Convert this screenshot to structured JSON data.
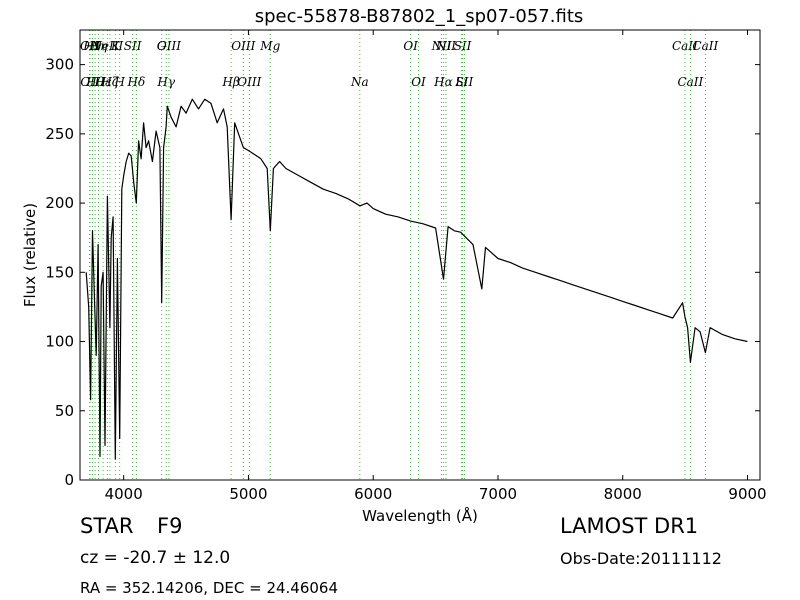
{
  "chart_data": {
    "type": "line",
    "title": "spec-55878-B87802_1_sp07-057.fits",
    "xlabel": "Wavelength (Å)",
    "ylabel": "Flux (relative)",
    "xlim": [
      3650,
      9100
    ],
    "ylim": [
      0,
      325
    ],
    "x_ticks": [
      4000,
      5000,
      6000,
      7000,
      8000,
      9000
    ],
    "y_ticks": [
      0,
      50,
      100,
      150,
      200,
      250,
      300
    ],
    "grid": false,
    "line_color": "#000000",
    "marker_color": "#4daf4a",
    "series": [
      {
        "x": [
          3700,
          3720,
          3735,
          3750,
          3765,
          3780,
          3795,
          3810,
          3820,
          3835,
          3850,
          3870,
          3890,
          3900,
          3915,
          3933,
          3950,
          3968,
          3985,
          4000,
          4020,
          4040,
          4060,
          4080,
          4101,
          4120,
          4140,
          4160,
          4180,
          4200,
          4230,
          4260,
          4290,
          4305,
          4320,
          4340,
          4350,
          4380,
          4420,
          4460,
          4500,
          4550,
          4600,
          4650,
          4700,
          4750,
          4800,
          4830,
          4861,
          4890,
          4920,
          4960,
          5000,
          5050,
          5100,
          5150,
          5175,
          5200,
          5250,
          5300,
          5400,
          5500,
          5600,
          5700,
          5800,
          5893,
          5950,
          6000,
          6100,
          6200,
          6300,
          6400,
          6500,
          6563,
          6600,
          6650,
          6700,
          6800,
          6870,
          6900,
          7000,
          7100,
          7200,
          7300,
          7400,
          7500,
          7600,
          7700,
          7800,
          7900,
          8000,
          8100,
          8200,
          8300,
          8400,
          8480,
          8498,
          8520,
          8542,
          8580,
          8620,
          8662,
          8700,
          8800,
          8900,
          9000
        ],
        "y": [
          150,
          125,
          58,
          180,
          135,
          90,
          170,
          17,
          140,
          150,
          25,
          205,
          110,
          175,
          190,
          15,
          160,
          30,
          210,
          220,
          230,
          236,
          234,
          215,
          200,
          245,
          232,
          258,
          240,
          245,
          230,
          252,
          240,
          128,
          240,
          255,
          270,
          262,
          255,
          270,
          265,
          275,
          268,
          275,
          272,
          258,
          268,
          255,
          188,
          258,
          250,
          240,
          238,
          235,
          232,
          225,
          180,
          225,
          230,
          225,
          220,
          215,
          210,
          207,
          203,
          198,
          200,
          196,
          192,
          190,
          187,
          185,
          182,
          145,
          183,
          180,
          179,
          170,
          138,
          168,
          160,
          157,
          153,
          150,
          147,
          144,
          141,
          138,
          135,
          132,
          129,
          126,
          123,
          120,
          117,
          128,
          118,
          110,
          85,
          110,
          107,
          92,
          110,
          105,
          102,
          100
        ]
      }
    ],
    "line_markers": [
      {
        "x": 3727,
        "label": "OII"
      },
      {
        "x": 3730,
        "label": "OII"
      },
      {
        "x": 3750,
        "label": "H9"
      },
      {
        "x": 3771,
        "label": "Hθ"
      },
      {
        "x": 3798,
        "label": "Hη"
      },
      {
        "x": 3835,
        "label": "Hε"
      },
      {
        "x": 3869,
        "label": "NeIII"
      },
      {
        "x": 3889,
        "label": "Hζ"
      },
      {
        "x": 3934,
        "label": "K"
      },
      {
        "x": 3968,
        "label": "H"
      },
      {
        "x": 4072,
        "label": "SII"
      },
      {
        "x": 4102,
        "label": "Hδ"
      },
      {
        "x": 4304,
        "label": "G"
      },
      {
        "x": 4341,
        "label": "Hγ"
      },
      {
        "x": 4363,
        "label": "OIII"
      },
      {
        "x": 4861,
        "label": "Hβ"
      },
      {
        "x": 4959,
        "label": "OIII"
      },
      {
        "x": 5007,
        "label": "OIII"
      },
      {
        "x": 5175,
        "label": "Mg"
      },
      {
        "x": 5893,
        "label": "Na"
      },
      {
        "x": 6300,
        "label": "OI"
      },
      {
        "x": 6363,
        "label": "OI"
      },
      {
        "x": 6548,
        "label": "NII"
      },
      {
        "x": 6563,
        "label": "Hα"
      },
      {
        "x": 6583,
        "label": "NII"
      },
      {
        "x": 6707,
        "label": "Li"
      },
      {
        "x": 6716,
        "label": "SII"
      },
      {
        "x": 6731,
        "label": "SII"
      },
      {
        "x": 8498,
        "label": "CaII"
      },
      {
        "x": 8542,
        "label": "CaII"
      },
      {
        "x": 8662,
        "label": "CaII"
      }
    ]
  },
  "info": {
    "object_class": "STAR",
    "subclass": "F9",
    "redshift": "cz = -20.7 ± 12.0",
    "survey": "LAMOST DR1",
    "obs_date": "Obs-Date:20111112",
    "coords": "RA = 352.14206, DEC = 24.46064"
  }
}
